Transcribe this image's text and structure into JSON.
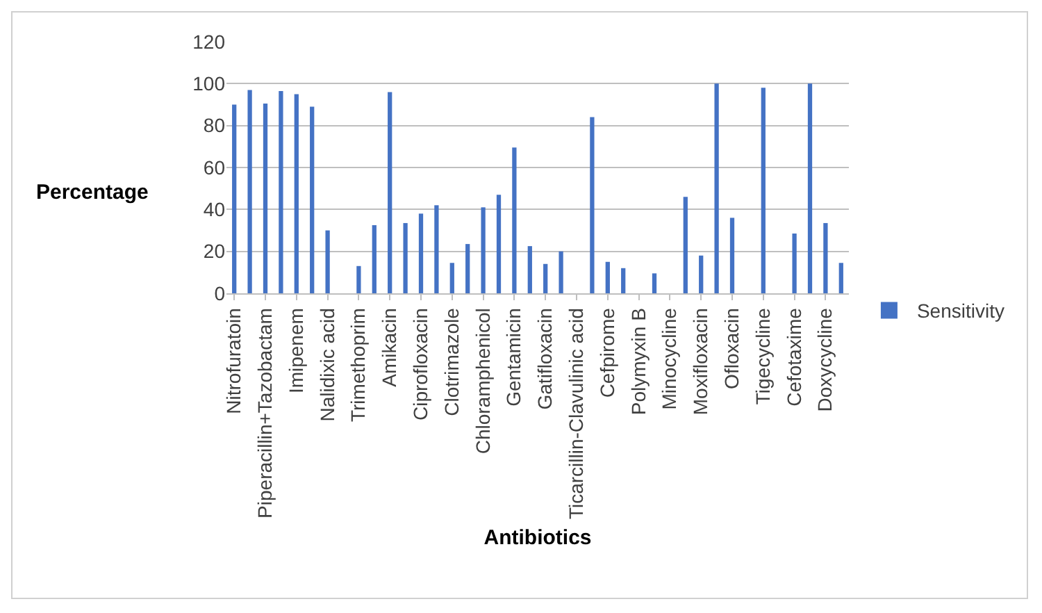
{
  "chart_data": {
    "type": "bar",
    "xlabel": "Antibiotics",
    "ylabel": "Percentage",
    "categories": [
      "Nitrofuratoin",
      null,
      "Piperacillin+Tazobactam",
      null,
      "Imipenem",
      null,
      "Nalidixic acid",
      null,
      "Trimethoprim",
      null,
      "Amikacin",
      null,
      "Ciprofloxacin",
      null,
      "Clotrimazole",
      null,
      "Chloramphenicol",
      null,
      "Gentamicin",
      null,
      "Gatifloxacin",
      null,
      "Ticarcillin-Clavulinic acid",
      null,
      "Cefpirome",
      null,
      "Polymyxin B",
      null,
      "Minocycline",
      null,
      "Moxifloxacin",
      null,
      "Ofloxacin",
      null,
      "Tigecycline",
      null,
      "Cefotaxime",
      null,
      "Doxycycline",
      null
    ],
    "series": [
      {
        "name": "Sensitivity",
        "color": "#4472c4",
        "values": [
          90,
          97,
          90.5,
          96.5,
          95,
          89,
          30,
          null,
          13,
          32.5,
          96,
          33.5,
          38,
          42,
          14.5,
          23.5,
          41,
          47,
          69.5,
          22.5,
          14,
          20,
          null,
          84,
          15,
          12,
          null,
          9.5,
          null,
          46,
          18,
          100,
          36,
          null,
          98,
          null,
          28.5,
          100,
          33.5,
          14.5
        ]
      }
    ],
    "ylim": [
      0,
      120
    ],
    "yticks": [
      0,
      20,
      40,
      60,
      80,
      100,
      120
    ],
    "grid": "y",
    "legend": "right"
  }
}
